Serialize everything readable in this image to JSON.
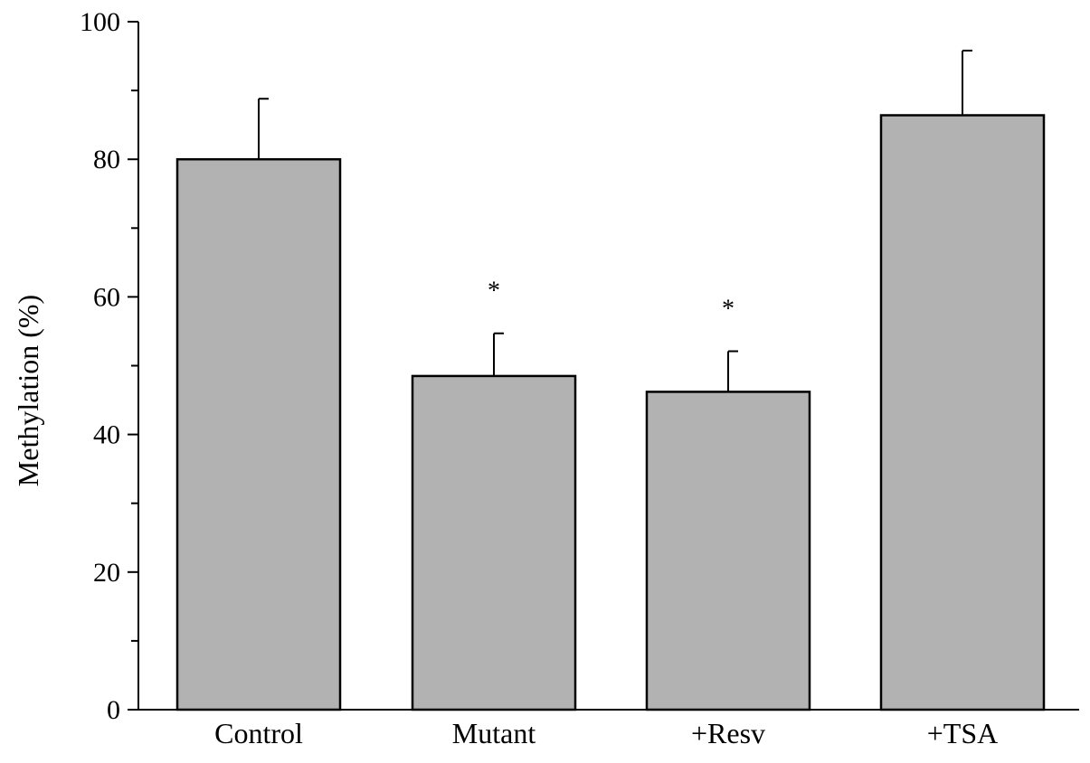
{
  "chart_data": {
    "type": "bar",
    "title": "",
    "xlabel": "",
    "ylabel": "Methylation (%)",
    "ylim": [
      0,
      100
    ],
    "yticks": [
      0,
      20,
      40,
      60,
      80,
      100
    ],
    "yminor_step": 10,
    "grid": false,
    "legend": "none",
    "categories": [
      "Control",
      "Mutant",
      "+Resv",
      "+TSA"
    ],
    "values": [
      80,
      48.5,
      46.2,
      86.4
    ],
    "errors": [
      8.8,
      6.2,
      5.9,
      9.4
    ],
    "significance": [
      "",
      "*",
      "*",
      ""
    ],
    "bar_color": "#b2b2b2",
    "edge_color": "#000000"
  }
}
